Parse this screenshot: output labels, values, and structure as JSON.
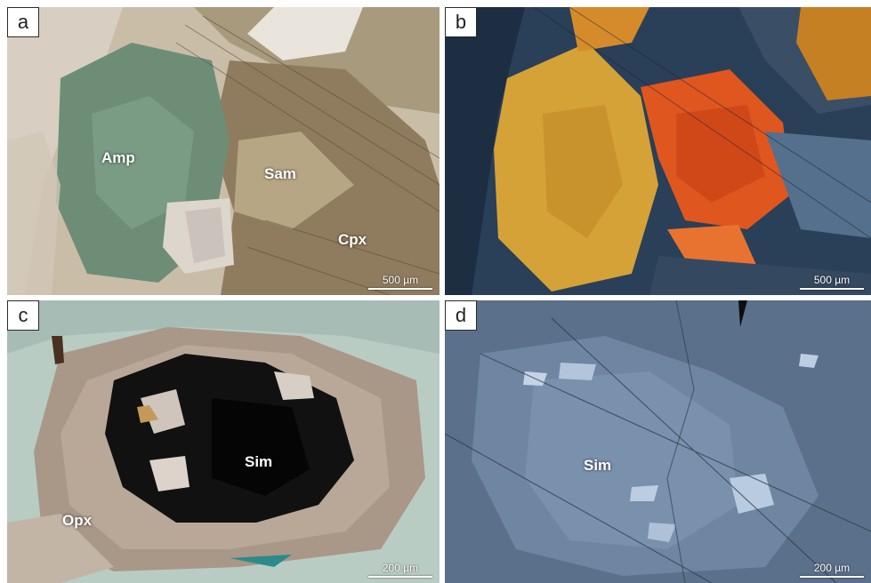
{
  "panels": [
    {
      "letter": "a",
      "labels": [
        "Amp",
        "Sam",
        "Cpx"
      ],
      "scale": "500 µm"
    },
    {
      "letter": "b",
      "labels": [],
      "scale": "500 µm"
    },
    {
      "letter": "c",
      "labels": [
        "Sim",
        "Opx"
      ],
      "scale": "200 µm"
    },
    {
      "letter": "d",
      "labels": [
        "Sim"
      ],
      "scale": "200 µm"
    }
  ]
}
